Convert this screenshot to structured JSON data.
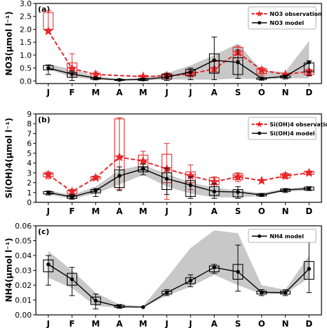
{
  "colors": {
    "observation": "#e8262a",
    "model": "#000000",
    "band": "#c8c8c8"
  },
  "chart_data": [
    {
      "type": "line",
      "panel_label": "(a)",
      "ylabel": "NO3(μmol l⁻¹)",
      "ylim": [
        -0.1,
        3.0
      ],
      "yticks": [
        0.0,
        0.5,
        1.0,
        1.5,
        2.0,
        2.5,
        3.0
      ],
      "ytick_labels": [
        "0.0",
        "0.5",
        "1.0",
        "1.5",
        "2.0",
        "2.5",
        "3.0"
      ],
      "categories": [
        "J",
        "F",
        "M",
        "A",
        "M",
        "J",
        "J",
        "A",
        "S",
        "O",
        "N",
        "D"
      ],
      "legend": [
        "NO3 observation",
        "NO3 model"
      ],
      "legend_position": "top-right",
      "band": {
        "lower": [
          0.45,
          0.15,
          0.05,
          0.02,
          0.02,
          0.06,
          0.05,
          0.05,
          0.1,
          0.06,
          0.1,
          0.1
        ],
        "upper": [
          0.65,
          0.45,
          0.18,
          0.08,
          0.12,
          0.3,
          0.6,
          1.0,
          1.45,
          0.4,
          0.35,
          1.55
        ]
      },
      "series": [
        {
          "name": "NO3 observation",
          "values": [
            1.93,
            0.48,
            0.25,
            null,
            0.17,
            0.2,
            0.27,
            0.47,
            1.1,
            0.42,
            0.25,
            0.37
          ],
          "boxes": [
            {
              "q1": 2.0,
              "q3": 2.65,
              "low": 1.85,
              "high": 2.72
            },
            {
              "q1": 0.3,
              "q3": 0.7,
              "low": 0.15,
              "high": 1.05
            },
            {
              "q1": 0.12,
              "q3": 0.28,
              "low": 0.05,
              "high": 0.35
            },
            null,
            {
              "q1": 0.17,
              "q3": 0.2,
              "low": 0.15,
              "high": 0.22
            },
            {
              "q1": 0.15,
              "q3": 0.28,
              "low": 0.1,
              "high": 0.3
            },
            {
              "q1": 0.25,
              "q3": 0.35,
              "low": 0.2,
              "high": 0.4
            },
            {
              "q1": 0.35,
              "q3": 0.75,
              "low": 0.3,
              "high": 0.8
            },
            {
              "q1": 0.9,
              "q3": 1.3,
              "low": 0.8,
              "high": 1.35
            },
            {
              "q1": 0.28,
              "q3": 0.48,
              "low": 0.22,
              "high": 0.52
            },
            null,
            {
              "q1": 0.25,
              "q3": 0.42,
              "low": 0.22,
              "high": 0.45
            }
          ]
        },
        {
          "name": "NO3 model",
          "values": [
            0.5,
            0.27,
            0.11,
            0.04,
            0.06,
            0.15,
            0.35,
            0.8,
            0.72,
            0.1,
            0.18,
            0.72
          ],
          "boxes": [
            {
              "q1": 0.43,
              "q3": 0.6,
              "low": 0.25,
              "high": 0.62
            },
            {
              "q1": 0.14,
              "q3": 0.32,
              "low": 0.02,
              "high": 0.38
            },
            {
              "q1": 0.07,
              "q3": 0.12,
              "low": 0.04,
              "high": 0.14
            },
            {
              "q1": 0.02,
              "q3": 0.06,
              "low": 0.01,
              "high": 0.08
            },
            {
              "q1": 0.02,
              "q3": 0.09,
              "low": 0.01,
              "high": 0.1
            },
            {
              "q1": 0.07,
              "q3": 0.25,
              "low": 0.02,
              "high": 0.3
            },
            {
              "q1": 0.2,
              "q3": 0.45,
              "low": 0.05,
              "high": 0.5
            },
            {
              "q1": 0.3,
              "q3": 1.05,
              "low": 0.05,
              "high": 1.7
            },
            {
              "q1": 0.25,
              "q3": 0.9,
              "low": 0.1,
              "high": 1.2
            },
            {
              "q1": 0.06,
              "q3": 0.12,
              "low": 0.03,
              "high": 0.14
            },
            {
              "q1": 0.12,
              "q3": 0.2,
              "low": 0.08,
              "high": 0.22
            },
            {
              "q1": 0.35,
              "q3": 0.7,
              "low": 0.2,
              "high": 0.78
            }
          ]
        }
      ]
    },
    {
      "type": "line",
      "panel_label": "(b)",
      "ylabel": "Si(OH)4(μmol l⁻¹)",
      "ylim": [
        0,
        9
      ],
      "yticks": [
        0,
        1,
        2,
        3,
        4,
        5,
        6,
        7,
        8,
        9
      ],
      "ytick_labels": [
        "0",
        "1",
        "2",
        "3",
        "4",
        "5",
        "6",
        "7",
        "8",
        "9"
      ],
      "categories": [
        "J",
        "F",
        "M",
        "A",
        "M",
        "J",
        "J",
        "A",
        "S",
        "O",
        "N",
        "D"
      ],
      "legend": [
        "Si(OH)4 observation",
        "Si(OH)4 model"
      ],
      "legend_position": "top-right",
      "band": {
        "lower": [
          0.8,
          0.35,
          0.9,
          1.8,
          2.8,
          1.6,
          0.9,
          0.5,
          0.5,
          0.65,
          1.1,
          1.2
        ],
        "upper": [
          1.2,
          0.75,
          1.6,
          3.3,
          3.8,
          2.9,
          2.0,
          1.5,
          1.2,
          0.95,
          1.4,
          1.6
        ]
      },
      "series": [
        {
          "name": "Si(OH)4 observation",
          "values": [
            2.8,
            1.1,
            2.5,
            4.6,
            4.2,
            3.4,
            2.7,
            2.1,
            2.6,
            2.2,
            2.7,
            3.0
          ],
          "boxes": [
            {
              "q1": 2.6,
              "q3": 3.0,
              "low": 2.4,
              "high": 3.1
            },
            {
              "q1": 0.9,
              "q3": 1.2,
              "low": 0.8,
              "high": 1.3
            },
            {
              "q1": 2.4,
              "q3": 2.6,
              "low": 2.3,
              "high": 2.7
            },
            {
              "q1": 1.5,
              "q3": 8.5,
              "low": 1.3,
              "high": 8.6
            },
            {
              "q1": 3.6,
              "q3": 4.8,
              "low": 3.4,
              "high": 5.2
            },
            {
              "q1": 2.0,
              "q3": 4.9,
              "low": 0.3,
              "high": 6.0
            },
            {
              "q1": 2.0,
              "q3": 3.1,
              "low": 1.3,
              "high": 3.8
            },
            {
              "q1": 1.8,
              "q3": 2.5,
              "low": 1.6,
              "high": 2.6
            },
            {
              "q1": 2.3,
              "q3": 2.9,
              "low": 2.1,
              "high": 3.0
            },
            null,
            {
              "q1": 2.5,
              "q3": 2.9,
              "low": 2.4,
              "high": 3.0
            },
            {
              "q1": 2.85,
              "q3": 3.15,
              "low": 2.8,
              "high": 3.2
            }
          ]
        },
        {
          "name": "Si(OH)4 model",
          "values": [
            1.0,
            0.55,
            1.2,
            2.7,
            3.4,
            2.4,
            1.75,
            1.1,
            1.05,
            0.75,
            1.25,
            1.4
          ],
          "boxes": [
            {
              "q1": 0.85,
              "q3": 1.1,
              "low": 0.75,
              "high": 1.15
            },
            {
              "q1": 0.4,
              "q3": 0.7,
              "low": 0.3,
              "high": 0.8
            },
            {
              "q1": 0.95,
              "q3": 1.3,
              "low": 0.6,
              "high": 1.4
            },
            {
              "q1": 1.5,
              "q3": 3.3,
              "low": 1.2,
              "high": 3.6
            },
            {
              "q1": 3.1,
              "q3": 3.6,
              "low": 2.8,
              "high": 3.9
            },
            {
              "q1": 1.3,
              "q3": 3.0,
              "low": 0.8,
              "high": 3.5
            },
            {
              "q1": 0.6,
              "q3": 2.2,
              "low": 0.4,
              "high": 2.6
            },
            {
              "q1": 0.7,
              "q3": 1.6,
              "low": 0.4,
              "high": 1.9
            },
            {
              "q1": 0.55,
              "q3": 1.3,
              "low": 0.4,
              "high": 1.6
            },
            {
              "q1": 0.65,
              "q3": 0.85,
              "low": 0.6,
              "high": 0.9
            },
            {
              "q1": 1.1,
              "q3": 1.35,
              "low": 1.0,
              "high": 1.4
            },
            {
              "q1": 1.25,
              "q3": 1.55,
              "low": 1.2,
              "high": 1.6
            }
          ]
        }
      ]
    },
    {
      "type": "line",
      "panel_label": "(c)",
      "ylabel": "NH4(μmol l⁻¹)",
      "ylim": [
        0.0,
        0.06
      ],
      "yticks": [
        0.0,
        0.01,
        0.02,
        0.03,
        0.04,
        0.05,
        0.06
      ],
      "ytick_labels": [
        "0.00",
        "0.01",
        "0.02",
        "0.03",
        "0.04",
        "0.05",
        "0.06"
      ],
      "categories": [
        "J",
        "F",
        "M",
        "A",
        "M",
        "J",
        "J",
        "A",
        "S",
        "O",
        "N",
        "D"
      ],
      "legend": [
        "NH4 model"
      ],
      "legend_position": "top-right",
      "band": {
        "lower": [
          0.025,
          0.018,
          0.006,
          0.005,
          0.005,
          0.013,
          0.019,
          0.027,
          0.02,
          0.014,
          0.014,
          0.025
        ],
        "upper": [
          0.043,
          0.03,
          0.015,
          0.007,
          0.006,
          0.025,
          0.045,
          0.057,
          0.055,
          0.02,
          0.017,
          0.04
        ]
      },
      "series": [
        {
          "name": "NH4 model",
          "values": [
            0.034,
            0.024,
            0.0095,
            0.0055,
            0.0052,
            0.015,
            0.023,
            0.032,
            0.029,
            0.0152,
            0.015,
            0.031
          ],
          "boxes": [
            {
              "q1": 0.029,
              "q3": 0.037,
              "low": 0.02,
              "high": 0.04
            },
            {
              "q1": 0.02,
              "q3": 0.028,
              "low": 0.013,
              "high": 0.032
            },
            {
              "q1": 0.007,
              "q3": 0.012,
              "low": 0.004,
              "high": 0.014
            },
            {
              "q1": 0.005,
              "q3": 0.0065,
              "low": 0.0045,
              "high": 0.007
            },
            null,
            {
              "q1": 0.014,
              "q3": 0.016,
              "low": 0.013,
              "high": 0.017
            },
            {
              "q1": 0.021,
              "q3": 0.025,
              "low": 0.019,
              "high": 0.027
            },
            {
              "q1": 0.029,
              "q3": 0.033,
              "low": 0.028,
              "high": 0.034
            },
            {
              "q1": 0.024,
              "q3": 0.034,
              "low": 0.016,
              "high": 0.047
            },
            {
              "q1": 0.014,
              "q3": 0.016,
              "low": 0.013,
              "high": 0.017
            },
            {
              "q1": 0.014,
              "q3": 0.016,
              "low": 0.013,
              "high": 0.017
            },
            {
              "q1": 0.024,
              "q3": 0.036,
              "low": 0.015,
              "high": 0.052
            }
          ]
        }
      ]
    }
  ]
}
